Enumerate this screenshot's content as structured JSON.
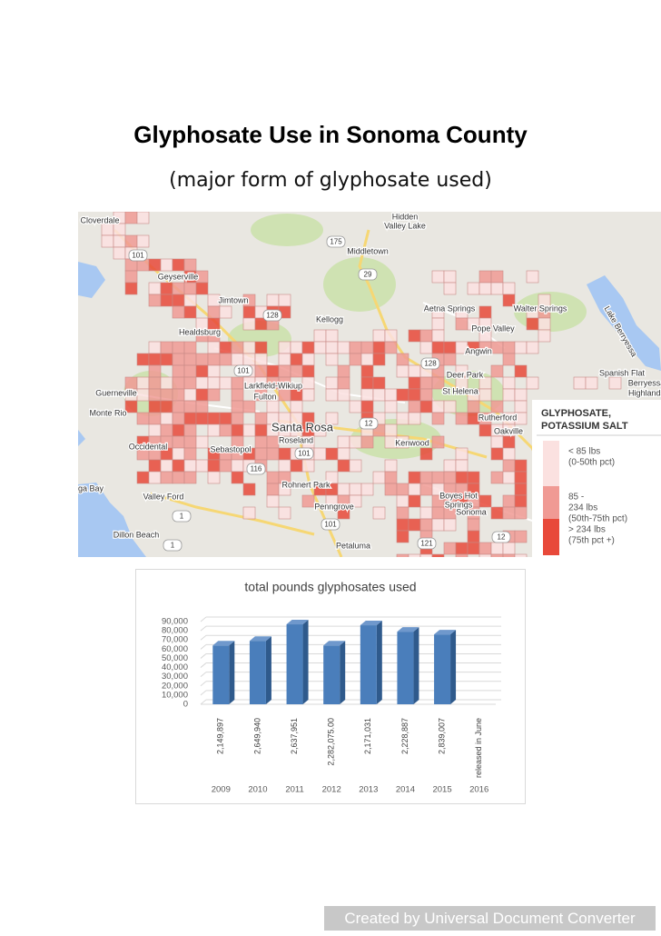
{
  "header": {
    "title": "Glyphosate Use in Sonoma County",
    "subtitle": "(major form of glyphosate used)"
  },
  "map": {
    "places": [
      "Cloverdale",
      "Hidden",
      "Valley Lake",
      "Middletown",
      "Geyserville",
      "Jimtown",
      "Healdsburg",
      "Kellogg",
      "Aetna Springs",
      "Walter Springs",
      "Pope Valley",
      "Lake Berryessa",
      "Angwin",
      "Deer Park",
      "St Helena",
      "Rutherford",
      "Oakville",
      "Spanish Flat",
      "Berryessa",
      "Highlands",
      "Guerneville",
      "Larkfield-Wikiup",
      "Fulton",
      "Monte Rio",
      "Santa Rosa",
      "Roseland",
      "Occidental",
      "Sebastopol",
      "Kenwood",
      "Rohnert Park",
      "Valley Ford",
      "ga Bay",
      "Penngrove",
      "Boyes Hot",
      "Springs",
      "Sonoma",
      "Dillon Beach",
      "Petaluma"
    ],
    "routes": [
      "175",
      "29",
      "101",
      "128",
      "101",
      "12",
      "101",
      "116",
      "1",
      "101",
      "1",
      "121",
      "12",
      "128"
    ],
    "legend": {
      "title_lines": [
        "GLYPHOSATE,",
        "POTASSIUM SALT"
      ],
      "items": [
        {
          "lines": [
            "< 85 lbs",
            "(0-50th pct)"
          ],
          "color": "#fbe1e0"
        },
        {
          "lines": [
            "85  -",
            "234 lbs",
            "(50th-75th pct)"
          ],
          "color": "#f09a94"
        },
        {
          "lines": [
            "> 234 lbs",
            "(75th pct +)"
          ],
          "color": "#e8493a"
        }
      ]
    }
  },
  "chart_data": {
    "type": "bar",
    "title": "total pounds glyphosates used",
    "categories": [
      "2009",
      "2010",
      "2011",
      "2012",
      "2013",
      "2014",
      "2015",
      "2016"
    ],
    "values": [
      64000,
      69000,
      87000,
      64000,
      86000,
      79000,
      76000,
      null
    ],
    "annotations": [
      "2,149,897",
      "2,649,940",
      "2,637,951",
      "2,282,075.00",
      "2,171,031",
      "2,228,887",
      "2,839,007",
      "released in June"
    ],
    "color": "#4a7ebb",
    "ylim": [
      0,
      90000
    ],
    "yticks": [
      0,
      {
        "value": 10000,
        "label": "10,000"
      },
      {
        "value": 20000,
        "label": "20,000"
      },
      {
        "value": 30000,
        "label": "30,000"
      },
      {
        "value": 40000,
        "label": "40,000"
      },
      {
        "value": 50000,
        "label": "50,000"
      },
      {
        "value": 60000,
        "label": "60,000"
      },
      {
        "value": 70000,
        "label": "70,000"
      },
      {
        "value": 80000,
        "label": "80,000"
      },
      {
        "value": 90000,
        "label": "90,000"
      }
    ],
    "grid": true
  },
  "footer": "Created by Universal Document Converter"
}
